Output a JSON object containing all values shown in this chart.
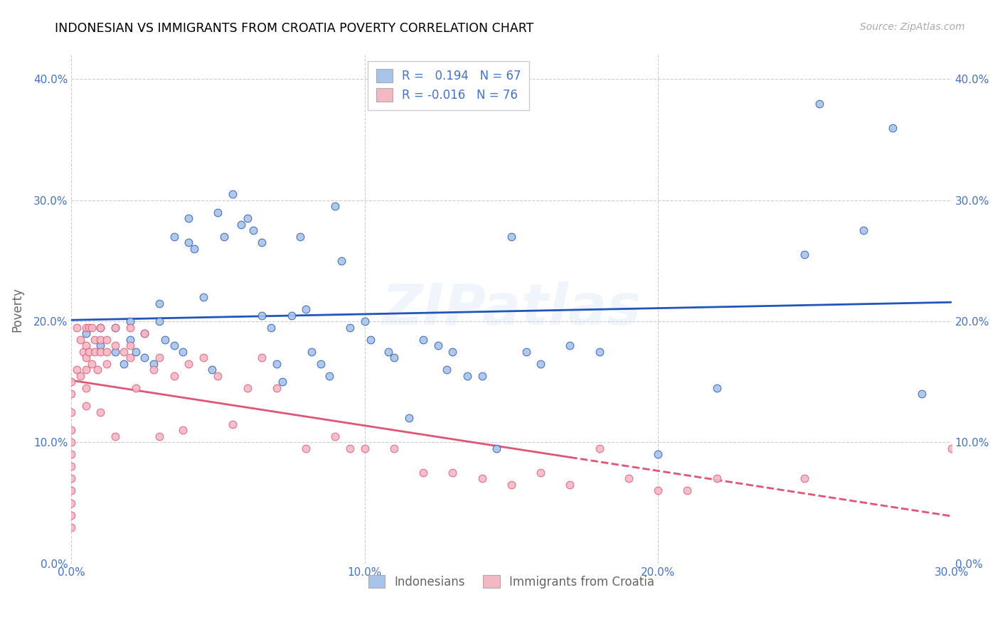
{
  "title": "INDONESIAN VS IMMIGRANTS FROM CROATIA POVERTY CORRELATION CHART",
  "source": "Source: ZipAtlas.com",
  "ylabel": "Poverty",
  "xlim": [
    0.0,
    0.3
  ],
  "ylim": [
    0.0,
    0.42
  ],
  "blue_R": 0.194,
  "blue_N": 67,
  "pink_R": -0.016,
  "pink_N": 76,
  "blue_color": "#a8c4e8",
  "pink_color": "#f4b8c4",
  "blue_line_color": "#2255bb",
  "pink_line_color": "#e05575",
  "watermark": "ZIPatlas",
  "legend_label_blue": "Indonesians",
  "legend_label_pink": "Immigrants from Croatia",
  "blue_scatter_x": [
    0.005,
    0.01,
    0.01,
    0.015,
    0.015,
    0.018,
    0.02,
    0.02,
    0.022,
    0.025,
    0.025,
    0.028,
    0.03,
    0.03,
    0.032,
    0.035,
    0.035,
    0.038,
    0.04,
    0.04,
    0.042,
    0.045,
    0.048,
    0.05,
    0.052,
    0.055,
    0.058,
    0.06,
    0.062,
    0.065,
    0.065,
    0.068,
    0.07,
    0.072,
    0.075,
    0.078,
    0.08,
    0.082,
    0.085,
    0.088,
    0.09,
    0.092,
    0.095,
    0.1,
    0.102,
    0.108,
    0.11,
    0.115,
    0.12,
    0.125,
    0.128,
    0.13,
    0.135,
    0.14,
    0.145,
    0.15,
    0.155,
    0.16,
    0.17,
    0.18,
    0.2,
    0.22,
    0.25,
    0.255,
    0.27,
    0.28,
    0.29
  ],
  "blue_scatter_y": [
    0.19,
    0.195,
    0.18,
    0.195,
    0.175,
    0.165,
    0.2,
    0.185,
    0.175,
    0.19,
    0.17,
    0.165,
    0.215,
    0.2,
    0.185,
    0.27,
    0.18,
    0.175,
    0.285,
    0.265,
    0.26,
    0.22,
    0.16,
    0.29,
    0.27,
    0.305,
    0.28,
    0.285,
    0.275,
    0.265,
    0.205,
    0.195,
    0.165,
    0.15,
    0.205,
    0.27,
    0.21,
    0.175,
    0.165,
    0.155,
    0.295,
    0.25,
    0.195,
    0.2,
    0.185,
    0.175,
    0.17,
    0.12,
    0.185,
    0.18,
    0.16,
    0.175,
    0.155,
    0.155,
    0.095,
    0.27,
    0.175,
    0.165,
    0.18,
    0.175,
    0.09,
    0.145,
    0.255,
    0.38,
    0.275,
    0.36,
    0.14
  ],
  "pink_scatter_x": [
    0.0,
    0.0,
    0.0,
    0.0,
    0.0,
    0.0,
    0.0,
    0.0,
    0.0,
    0.0,
    0.0,
    0.0,
    0.002,
    0.002,
    0.003,
    0.003,
    0.004,
    0.005,
    0.005,
    0.005,
    0.005,
    0.005,
    0.005,
    0.006,
    0.006,
    0.007,
    0.007,
    0.008,
    0.008,
    0.009,
    0.01,
    0.01,
    0.01,
    0.01,
    0.012,
    0.012,
    0.012,
    0.015,
    0.015,
    0.015,
    0.018,
    0.02,
    0.02,
    0.02,
    0.022,
    0.025,
    0.028,
    0.03,
    0.03,
    0.035,
    0.038,
    0.04,
    0.045,
    0.05,
    0.055,
    0.06,
    0.065,
    0.07,
    0.08,
    0.09,
    0.095,
    0.1,
    0.11,
    0.12,
    0.13,
    0.14,
    0.15,
    0.16,
    0.17,
    0.18,
    0.19,
    0.2,
    0.21,
    0.22,
    0.25,
    0.3
  ],
  "pink_scatter_y": [
    0.15,
    0.14,
    0.125,
    0.11,
    0.1,
    0.09,
    0.08,
    0.07,
    0.06,
    0.05,
    0.04,
    0.03,
    0.195,
    0.16,
    0.185,
    0.155,
    0.175,
    0.195,
    0.18,
    0.17,
    0.16,
    0.145,
    0.13,
    0.195,
    0.175,
    0.195,
    0.165,
    0.185,
    0.175,
    0.16,
    0.195,
    0.185,
    0.175,
    0.125,
    0.185,
    0.175,
    0.165,
    0.195,
    0.18,
    0.105,
    0.175,
    0.195,
    0.18,
    0.17,
    0.145,
    0.19,
    0.16,
    0.17,
    0.105,
    0.155,
    0.11,
    0.165,
    0.17,
    0.155,
    0.115,
    0.145,
    0.17,
    0.145,
    0.095,
    0.105,
    0.095,
    0.095,
    0.095,
    0.075,
    0.075,
    0.07,
    0.065,
    0.075,
    0.065,
    0.095,
    0.07,
    0.06,
    0.06,
    0.07,
    0.07,
    0.095
  ],
  "xtick_vals": [
    0.0,
    0.1,
    0.2,
    0.3
  ],
  "ytick_vals": [
    0.0,
    0.1,
    0.2,
    0.3,
    0.4
  ]
}
